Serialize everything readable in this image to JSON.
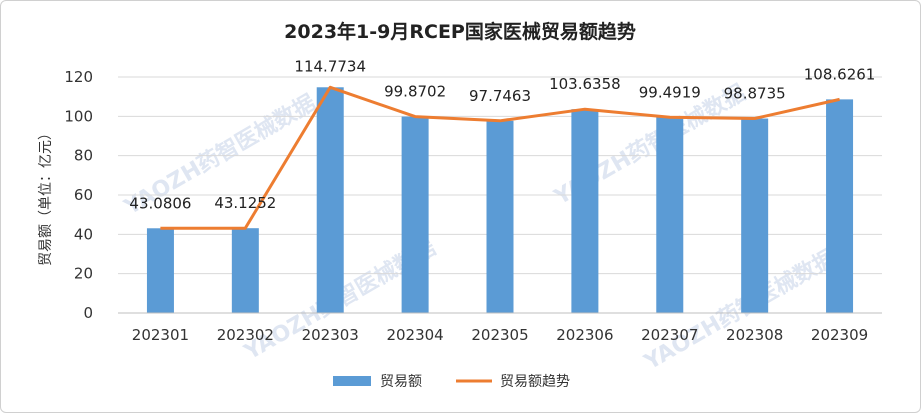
{
  "chart_data": {
    "type": "bar",
    "title": "2023年1-9月RCEP国家医械贸易额趋势",
    "ylabel": "贸易额（单位：亿元）",
    "xlabel": "",
    "ylim": [
      0,
      120
    ],
    "yticks": [
      0,
      20,
      40,
      60,
      80,
      100,
      120
    ],
    "categories": [
      "202301",
      "202302",
      "202303",
      "202304",
      "202305",
      "202306",
      "202307",
      "202308",
      "202309"
    ],
    "series": [
      {
        "name": "贸易额",
        "type": "bar",
        "color": "#5b9bd5",
        "values": [
          43.0806,
          43.1252,
          114.7734,
          99.8702,
          97.7463,
          103.6358,
          99.4919,
          98.8735,
          108.6261
        ]
      },
      {
        "name": "贸易额趋势",
        "type": "line",
        "color": "#ed7d31",
        "values": [
          43.0806,
          43.1252,
          114.7734,
          99.8702,
          97.7463,
          103.6358,
          99.4919,
          98.8735,
          108.6261
        ]
      }
    ],
    "data_labels": [
      "43.0806",
      "43.1252",
      "114.7734",
      "99.8702",
      "97.7463",
      "103.6358",
      "99.4919",
      "98.8735",
      "108.6261"
    ],
    "grid": true,
    "legend_position": "bottom"
  },
  "watermark": "YAOZH药智医械数据"
}
